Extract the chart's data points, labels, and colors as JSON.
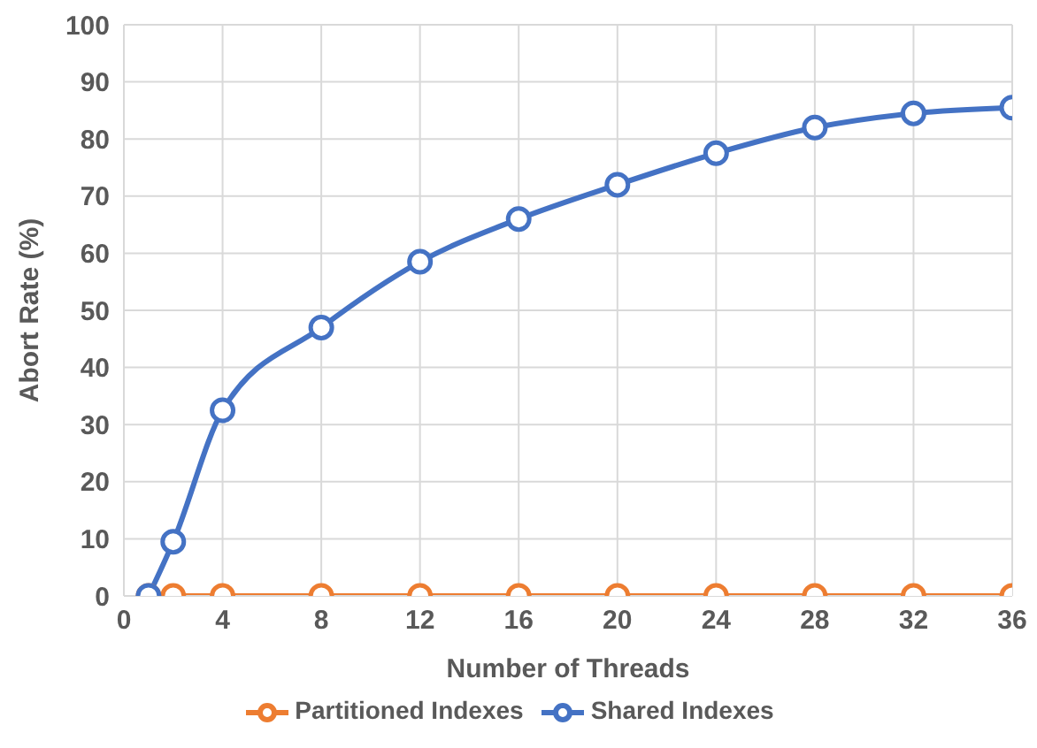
{
  "chart_data": {
    "type": "line",
    "xlabel": "Number of Threads",
    "ylabel": "Abort Rate (%)",
    "xlim": [
      0,
      36
    ],
    "xticks": [
      0,
      4,
      8,
      12,
      16,
      20,
      24,
      28,
      32,
      36
    ],
    "ylim": [
      0,
      100
    ],
    "yticks": [
      0,
      10,
      20,
      30,
      40,
      50,
      60,
      70,
      80,
      90,
      100
    ],
    "grid": true,
    "legend": "bottom",
    "marker": "circle",
    "line_style": "solid",
    "series": [
      {
        "name": "Partitioned Indexes",
        "color": "#ed7d31",
        "x": [
          1,
          2,
          4,
          8,
          12,
          16,
          20,
          24,
          28,
          32,
          36
        ],
        "values": [
          0,
          0,
          0,
          0,
          0,
          0,
          0,
          0,
          0,
          0,
          0
        ]
      },
      {
        "name": "Shared Indexes",
        "color": "#4472c4",
        "x": [
          1,
          2,
          4,
          8,
          12,
          16,
          20,
          24,
          28,
          32,
          36
        ],
        "values": [
          0,
          9.5,
          32.5,
          47,
          58.5,
          66,
          72,
          77.5,
          82,
          84.5,
          85.5
        ]
      }
    ]
  }
}
